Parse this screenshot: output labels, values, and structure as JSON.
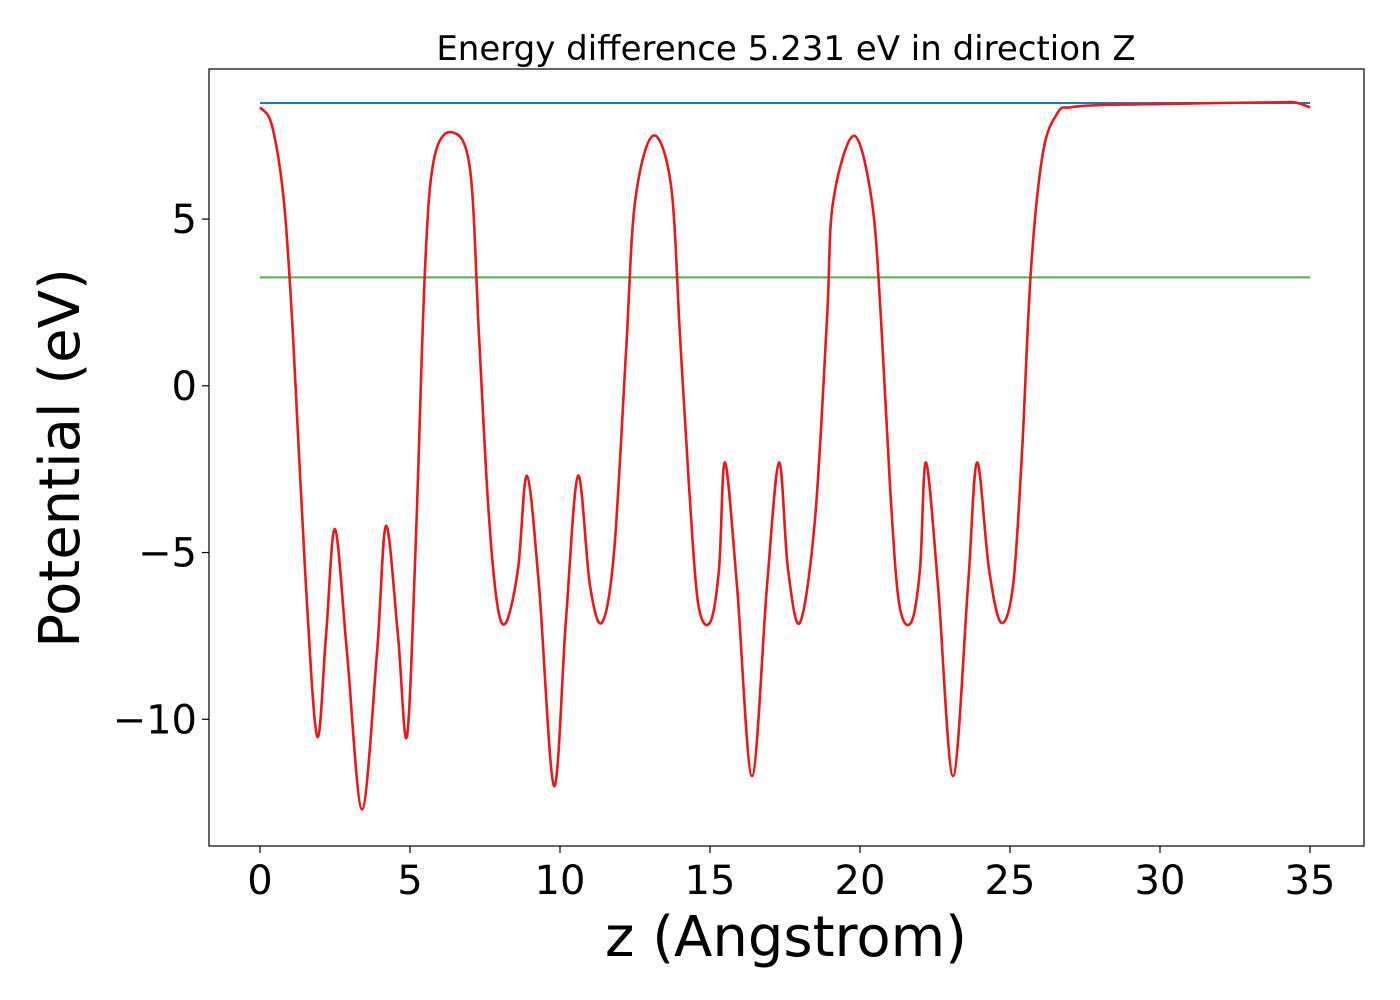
{
  "chart_data": {
    "type": "line",
    "title": "Energy difference 5.231 eV in direction Z",
    "xlabel": "z (Angstrom)",
    "ylabel": "Potential (eV)",
    "xlim": [
      -1.7,
      36.8
    ],
    "ylim": [
      -13.8,
      9.5
    ],
    "xticks": [
      0,
      5,
      10,
      15,
      20,
      25,
      30,
      35
    ],
    "xtick_labels": [
      "0",
      "5",
      "10",
      "15",
      "20",
      "25",
      "30",
      "35"
    ],
    "yticks": [
      -10,
      -5,
      0,
      5
    ],
    "ytick_labels": [
      "−10",
      "−5",
      "0",
      "5"
    ],
    "grid": false,
    "series": [
      {
        "color": "#1f77b4",
        "x": [
          0,
          35
        ],
        "y": [
          8.48,
          8.48
        ]
      },
      {
        "color": "#4daf4a",
        "x": [
          0,
          35
        ],
        "y": [
          3.25,
          3.25
        ]
      },
      {
        "color": "#e41a1c",
        "x": [
          0.0,
          0.4,
          0.8,
          1.1,
          1.5,
          1.9,
          2.2,
          2.5,
          2.9,
          3.4,
          3.9,
          4.2,
          4.6,
          4.9,
          5.2,
          5.5,
          5.8,
          6.4,
          7.0,
          7.3,
          7.6,
          7.9,
          8.2,
          8.6,
          8.9,
          9.3,
          9.8,
          10.2,
          10.6,
          11.0,
          11.4,
          11.8,
          12.2,
          12.5,
          13.1,
          13.7,
          14.0,
          14.3,
          14.6,
          15.0,
          15.3,
          15.5,
          15.9,
          16.4,
          16.9,
          17.3,
          17.6,
          18.0,
          18.5,
          18.9,
          19.1,
          19.8,
          20.4,
          20.7,
          21.0,
          21.3,
          21.7,
          22.0,
          22.2,
          22.6,
          23.1,
          23.6,
          23.9,
          24.3,
          24.7,
          25.1,
          25.4,
          25.7,
          26.1,
          26.6,
          27.0,
          28.0,
          30.0,
          32.0,
          34.0,
          34.5,
          35.0
        ],
        "y": [
          8.35,
          7.8,
          5.5,
          1.5,
          -5.5,
          -10.5,
          -7.5,
          -4.3,
          -8.0,
          -12.7,
          -8.0,
          -4.2,
          -7.5,
          -10.5,
          -4.5,
          3.5,
          6.8,
          7.6,
          6.5,
          1.5,
          -3.5,
          -6.5,
          -7.1,
          -5.5,
          -2.7,
          -6.0,
          -12.0,
          -7.0,
          -2.7,
          -6.0,
          -7.1,
          -5.0,
          1.0,
          5.5,
          7.5,
          6.0,
          1.5,
          -3.0,
          -6.5,
          -7.1,
          -5.5,
          -2.3,
          -6.0,
          -11.7,
          -6.0,
          -2.3,
          -5.5,
          -7.1,
          -4.0,
          2.0,
          5.5,
          7.5,
          5.5,
          2.0,
          -3.0,
          -6.5,
          -7.1,
          -5.5,
          -2.3,
          -6.0,
          -11.7,
          -6.0,
          -2.3,
          -5.5,
          -7.1,
          -6.0,
          -2.0,
          3.5,
          7.0,
          8.2,
          8.35,
          8.42,
          8.45,
          8.48,
          8.5,
          8.5,
          8.35
        ]
      }
    ]
  }
}
